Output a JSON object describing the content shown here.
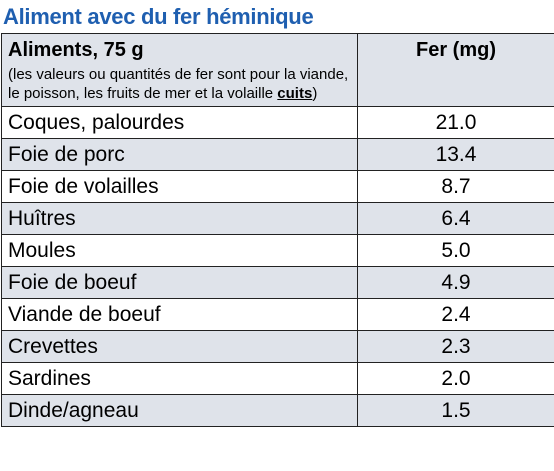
{
  "title": "Aliment avec du fer héminique",
  "header": {
    "col1_title": "Aliments, 75 g",
    "note_before": "(les valeurs ou quantités de fer sont pour la viande, le poisson, les fruits de mer et la volaille ",
    "note_emph": "cuits",
    "note_after": ")",
    "col2_title": "Fer (mg)"
  },
  "rows": [
    {
      "food": "Coques, palourdes",
      "iron": "21.0"
    },
    {
      "food": "Foie de porc",
      "iron": "13.4"
    },
    {
      "food": "Foie de volailles",
      "iron": "8.7"
    },
    {
      "food": "Huîtres",
      "iron": "6.4"
    },
    {
      "food": "Moules",
      "iron": "5.0"
    },
    {
      "food": "Foie de boeuf",
      "iron": "4.9"
    },
    {
      "food": "Viande de boeuf",
      "iron": "2.4"
    },
    {
      "food": "Crevettes",
      "iron": "2.3"
    },
    {
      "food": "Sardines",
      "iron": "2.0"
    },
    {
      "food": "Dinde/agneau",
      "iron": "1.5"
    }
  ],
  "colors": {
    "title": "#1f5fb0",
    "band": "#dfe3ea",
    "border": "#222222"
  }
}
